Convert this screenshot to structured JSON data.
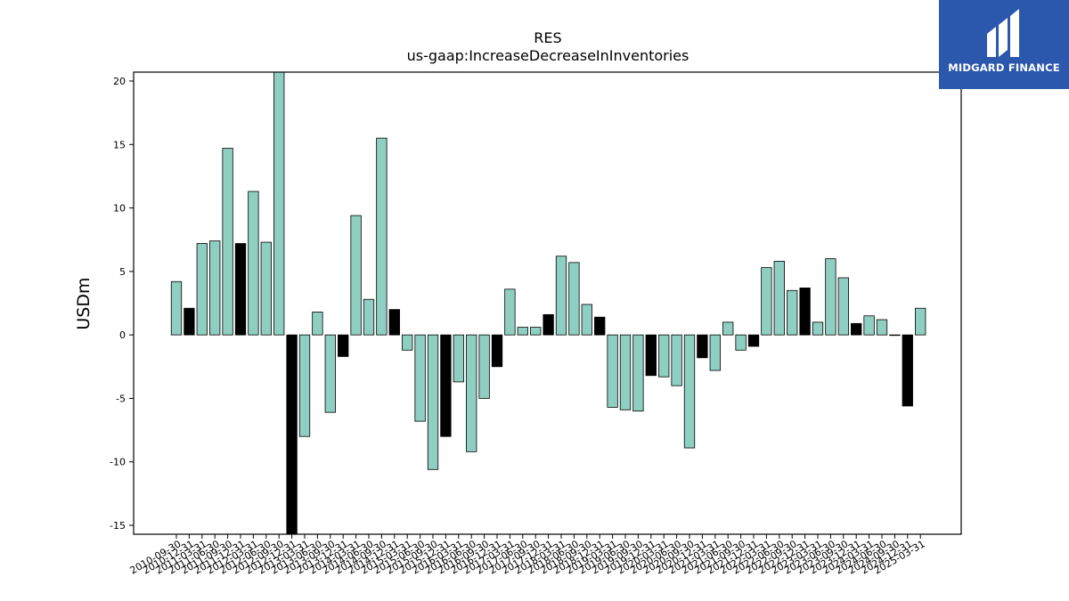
{
  "chart_data": {
    "type": "bar",
    "title": "RES",
    "subtitle": "us-gaap:IncreaseDecreaseInInventories",
    "xlabel": "",
    "ylabel": "USDm",
    "ylim": [
      -15.7,
      20.7
    ],
    "yticks": [
      -15,
      -10,
      -5,
      0,
      5,
      10,
      15,
      20
    ],
    "colors": {
      "normal": "#8ecfc2",
      "highlight": "#000000",
      "edge": "#000000"
    },
    "categories": [
      "2010-09-30",
      "2010-12-31",
      "2011-03-31",
      "2011-06-30",
      "2011-09-30",
      "2011-12-31",
      "2012-03-31",
      "2012-06-30",
      "2012-09-30",
      "2012-12-31",
      "2013-03-31",
      "2013-06-30",
      "2013-09-30",
      "2013-12-31",
      "2014-03-31",
      "2014-06-30",
      "2014-09-30",
      "2014-12-31",
      "2015-03-31",
      "2015-06-30",
      "2015-09-30",
      "2015-12-31",
      "2016-03-31",
      "2016-06-30",
      "2016-09-30",
      "2016-12-31",
      "2017-03-31",
      "2017-06-30",
      "2017-09-30",
      "2017-12-31",
      "2018-03-31",
      "2018-06-30",
      "2018-09-30",
      "2018-12-31",
      "2019-03-31",
      "2019-06-30",
      "2019-09-30",
      "2019-12-31",
      "2020-03-31",
      "2020-06-30",
      "2020-09-30",
      "2020-12-31",
      "2021-03-31",
      "2021-06-30",
      "2021-09-30",
      "2021-12-31",
      "2022-03-31",
      "2022-06-30",
      "2022-09-30",
      "2022-12-31",
      "2023-03-31",
      "2023-06-30",
      "2023-09-30",
      "2023-12-31",
      "2024-03-31",
      "2024-06-30",
      "2024-09-30",
      "2024-12-31",
      "2025-03-31"
    ],
    "values": [
      4.2,
      2.1,
      7.2,
      7.4,
      14.7,
      7.2,
      11.3,
      7.3,
      20.7,
      -15.7,
      -8.0,
      1.8,
      -6.1,
      -1.7,
      9.4,
      2.8,
      15.5,
      2.0,
      -1.2,
      -6.8,
      -10.6,
      -8.0,
      -3.7,
      -9.2,
      -5.0,
      -2.5,
      3.6,
      0.6,
      0.6,
      1.6,
      6.2,
      5.7,
      2.4,
      1.4,
      -5.7,
      -5.9,
      -6.0,
      -3.2,
      -3.3,
      -4.0,
      -8.9,
      -1.8,
      -2.8,
      1.0,
      -1.2,
      -0.9,
      5.3,
      5.8,
      3.5,
      3.7,
      1.0,
      6.0,
      4.5,
      0.9,
      1.5,
      1.2,
      0.0,
      -5.6,
      2.1
    ],
    "highlight": [
      false,
      true,
      false,
      false,
      false,
      true,
      false,
      false,
      false,
      true,
      false,
      false,
      false,
      true,
      false,
      false,
      false,
      true,
      false,
      false,
      false,
      true,
      false,
      false,
      false,
      true,
      false,
      false,
      false,
      true,
      false,
      false,
      false,
      true,
      false,
      false,
      false,
      true,
      false,
      false,
      false,
      true,
      false,
      false,
      false,
      true,
      false,
      false,
      false,
      true,
      false,
      false,
      false,
      true,
      false,
      false,
      false,
      true,
      false
    ]
  },
  "logo": {
    "text": "MIDGARD FINANCE"
  }
}
